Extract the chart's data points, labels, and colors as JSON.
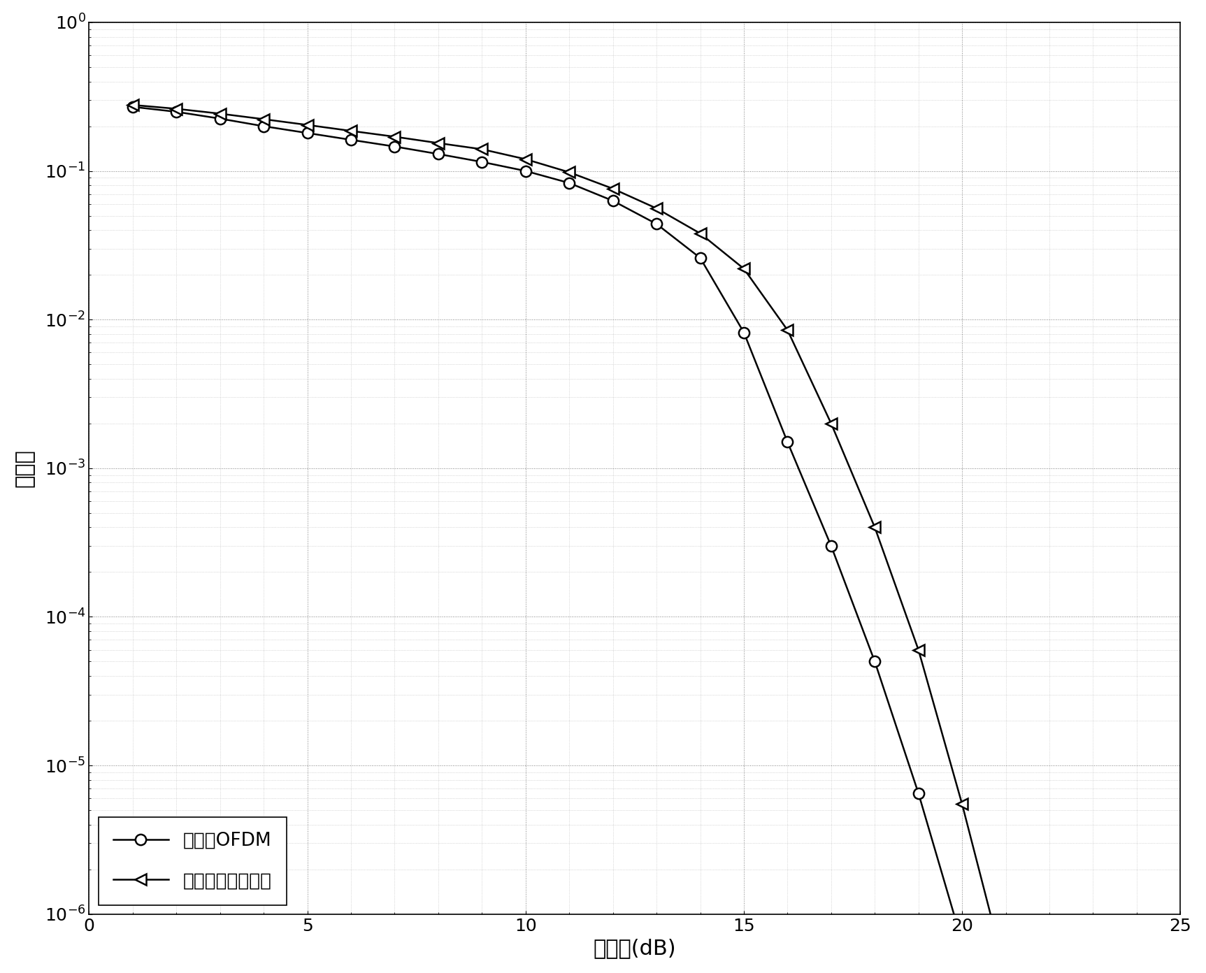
{
  "title": "",
  "xlabel": "信噪比(dB)",
  "ylabel": "误码率",
  "xlim": [
    0,
    25
  ],
  "ylim": [
    1e-06,
    1.0
  ],
  "xticks": [
    0,
    5,
    10,
    15,
    20,
    25
  ],
  "background_color": "#ffffff",
  "line_color": "#000000",
  "series": [
    {
      "label": "自适应OFDM",
      "marker": "o",
      "x": [
        1,
        2,
        3,
        4,
        5,
        6,
        7,
        8,
        9,
        10,
        11,
        12,
        13,
        14,
        15,
        16,
        17,
        18,
        19,
        20,
        21
      ],
      "y": [
        0.27,
        0.25,
        0.225,
        0.2,
        0.18,
        0.162,
        0.146,
        0.13,
        0.115,
        0.1,
        0.083,
        0.063,
        0.044,
        0.026,
        0.0082,
        0.0015,
        0.0003,
        5e-05,
        6.5e-06,
        6.5e-07,
        2.8e-08
      ]
    },
    {
      "label": "本发明提出的方法",
      "marker": "3",
      "x": [
        1,
        2,
        3,
        4,
        5,
        6,
        7,
        8,
        9,
        10,
        11,
        12,
        13,
        14,
        15,
        16,
        17,
        18,
        19,
        20,
        21,
        22
      ],
      "y": [
        0.278,
        0.262,
        0.243,
        0.223,
        0.204,
        0.186,
        0.17,
        0.154,
        0.14,
        0.12,
        0.098,
        0.076,
        0.056,
        0.038,
        0.022,
        0.0085,
        0.002,
        0.0004,
        6e-05,
        5.5e-06,
        4e-07,
        6e-08
      ]
    }
  ]
}
